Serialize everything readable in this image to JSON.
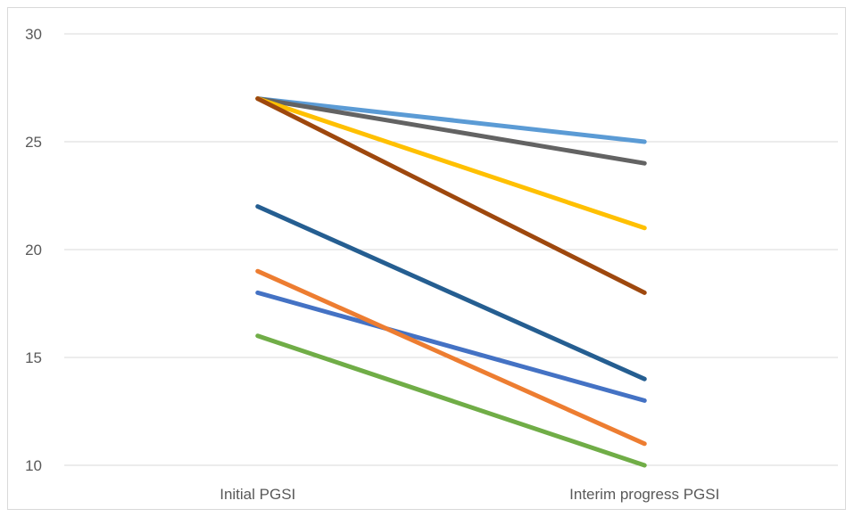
{
  "chart_data": {
    "type": "line",
    "categories": [
      "Initial PGSI",
      "Interim progress PGSI"
    ],
    "ylim": [
      10,
      30
    ],
    "yticks": [
      10,
      15,
      20,
      25,
      30
    ],
    "grid": true,
    "legend": "none",
    "series": [
      {
        "values": [
          27,
          25
        ],
        "color": "#5b9bd5"
      },
      {
        "values": [
          27,
          24
        ],
        "color": "#636363"
      },
      {
        "values": [
          27,
          21
        ],
        "color": "#ffc000"
      },
      {
        "values": [
          27,
          18
        ],
        "color": "#9e480e"
      },
      {
        "values": [
          22,
          14
        ],
        "color": "#255e91"
      },
      {
        "values": [
          18,
          13
        ],
        "color": "#4472c4"
      },
      {
        "values": [
          19,
          11
        ],
        "color": "#ed7d31"
      },
      {
        "values": [
          16,
          10
        ],
        "color": "#70ad47"
      }
    ]
  }
}
